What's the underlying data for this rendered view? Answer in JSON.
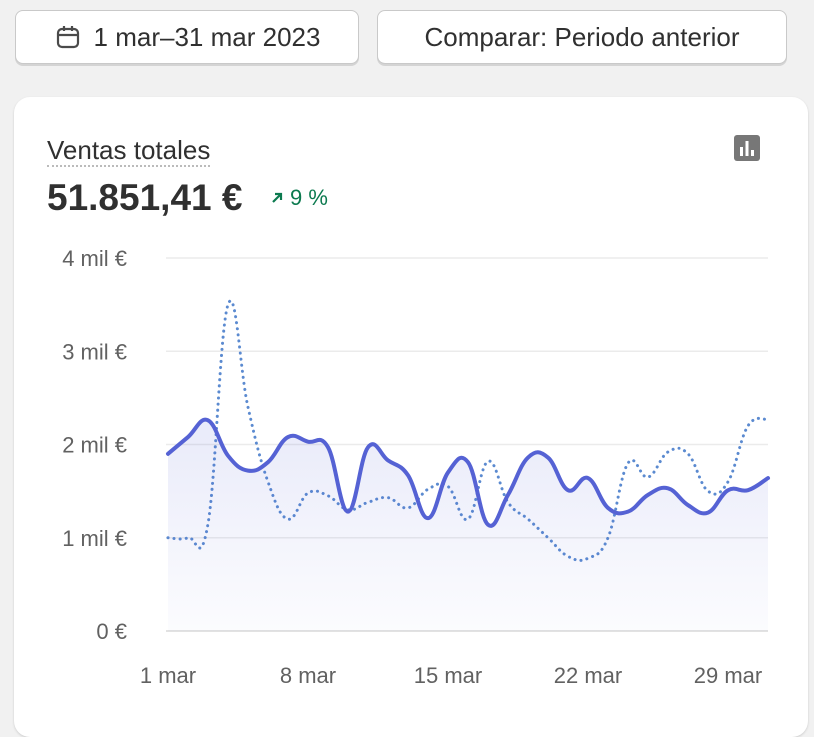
{
  "header": {
    "date_button": "1 mar–31 mar 2023",
    "compare_button": "Comparar: Periodo anterior"
  },
  "card": {
    "title": "Ventas totales",
    "total": "51.851,41 €",
    "change": "9 %"
  },
  "chart_data": {
    "type": "line",
    "categories": [
      "1 mar",
      null,
      null,
      null,
      null,
      null,
      null,
      "8 mar",
      null,
      null,
      null,
      null,
      null,
      null,
      "15 mar",
      null,
      null,
      null,
      null,
      null,
      null,
      "22 mar",
      null,
      null,
      null,
      null,
      null,
      null,
      "29 mar",
      null,
      null
    ],
    "series": [
      {
        "color": "#5562d4",
        "values": [
          1900,
          2080,
          2260,
          1880,
          1720,
          1810,
          2080,
          2030,
          1970,
          1280,
          1970,
          1830,
          1670,
          1210,
          1700,
          1810,
          1140,
          1460,
          1860,
          1860,
          1510,
          1640,
          1320,
          1280,
          1460,
          1530,
          1350,
          1270,
          1510,
          1510,
          1640
        ]
      },
      {
        "color": "#5b8ad0",
        "values": [
          1000,
          1000,
          1150,
          3500,
          2400,
          1600,
          1200,
          1480,
          1450,
          1300,
          1380,
          1430,
          1320,
          1520,
          1550,
          1200,
          1820,
          1380,
          1200,
          1000,
          800,
          780,
          1000,
          1800,
          1650,
          1920,
          1900,
          1500,
          1600,
          2200,
          2270
        ]
      }
    ],
    "ylim": [
      0,
      4000
    ],
    "yticks": [
      {
        "value": 0,
        "label": "0 €"
      },
      {
        "value": 1000,
        "label": "1 mil €"
      },
      {
        "value": 2000,
        "label": "2 mil €"
      },
      {
        "value": 3000,
        "label": "3 mil €"
      },
      {
        "value": 4000,
        "label": "4 mil €"
      }
    ],
    "grid": true
  }
}
